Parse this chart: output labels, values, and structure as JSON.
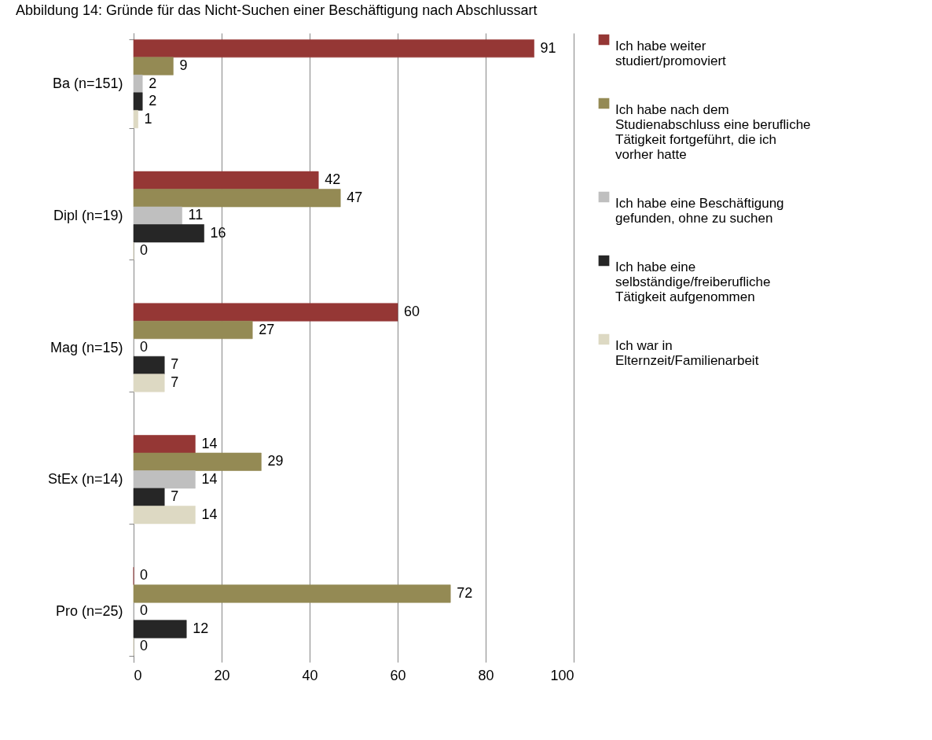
{
  "chart_data": {
    "type": "bar",
    "orientation": "horizontal",
    "title": "Abbildung 14: Gründe für das Nicht-Suchen einer Beschäftigung nach Abschlussart",
    "categories": [
      "Ba (n=151)",
      "Dipl (n=19)",
      "Mag (n=15)",
      "StEx (n=14)",
      "Pro (n=25)"
    ],
    "series": [
      {
        "name": "Ich habe weiter studiert/promoviert",
        "color": "#953735",
        "values": [
          91,
          42,
          60,
          14,
          0
        ]
      },
      {
        "name": "Ich habe nach dem Studienabschluss eine berufliche Tätigkeit fortgeführt, die ich vorher hatte",
        "color": "#948a54",
        "values": [
          9,
          47,
          27,
          29,
          72
        ]
      },
      {
        "name": "Ich habe eine Beschäftigung gefunden, ohne zu suchen",
        "color": "#bfbfbf",
        "values": [
          2,
          11,
          0,
          14,
          0
        ]
      },
      {
        "name": "Ich habe eine selbständige/freiberufliche Tätigkeit aufgenommen",
        "color": "#262626",
        "values": [
          2,
          16,
          7,
          7,
          12
        ]
      },
      {
        "name": "Ich war in Elternzeit/Familienarbeit",
        "color": "#ddd9c3",
        "values": [
          1,
          0,
          7,
          14,
          0
        ]
      }
    ],
    "xlim": [
      0,
      100
    ],
    "xticks": [
      0,
      20,
      40,
      60,
      80,
      100
    ],
    "grid": "x",
    "legend": "right",
    "data_labels": true
  }
}
